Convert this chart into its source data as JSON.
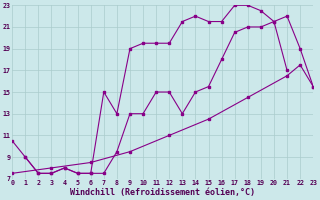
{
  "bg_color": "#cce8ea",
  "grid_color": "#aacccc",
  "line_color": "#880088",
  "xlabel": "Windchill (Refroidissement éolien,°C)",
  "xlabel_fontsize": 6.0,
  "xmin": 0,
  "xmax": 23,
  "ymin": 7,
  "ymax": 23,
  "yticks": [
    7,
    9,
    11,
    13,
    15,
    17,
    19,
    21,
    23
  ],
  "xticks": [
    0,
    1,
    2,
    3,
    4,
    5,
    6,
    7,
    8,
    9,
    10,
    11,
    12,
    13,
    14,
    15,
    16,
    17,
    18,
    19,
    20,
    21,
    22,
    23
  ],
  "series": [
    {
      "x": [
        0,
        1,
        2,
        3,
        4,
        5,
        6,
        7,
        8,
        9,
        10,
        11,
        12,
        13,
        14,
        15,
        16,
        17,
        18,
        19,
        20,
        21
      ],
      "y": [
        10.5,
        9.0,
        7.5,
        7.5,
        8.0,
        7.5,
        7.5,
        15.0,
        13.0,
        19.0,
        19.5,
        19.5,
        19.5,
        21.5,
        22.0,
        21.5,
        21.5,
        23.0,
        23.0,
        22.5,
        21.5,
        17.0
      ]
    },
    {
      "x": [
        1,
        2,
        3,
        4,
        5,
        6,
        7,
        8,
        9,
        10,
        11,
        12,
        13,
        14,
        15,
        16,
        17,
        18,
        19,
        20,
        21,
        22,
        23
      ],
      "y": [
        9.0,
        7.5,
        7.5,
        8.0,
        7.5,
        7.5,
        7.5,
        9.5,
        13.0,
        13.0,
        15.0,
        15.0,
        13.0,
        15.0,
        15.5,
        18.0,
        20.5,
        21.0,
        21.0,
        21.5,
        22.0,
        19.0,
        15.5
      ]
    },
    {
      "x": [
        0,
        3,
        6,
        9,
        12,
        15,
        18,
        21,
        22,
        23
      ],
      "y": [
        7.5,
        8.0,
        8.5,
        9.5,
        11.0,
        12.5,
        14.5,
        16.5,
        17.5,
        15.5
      ]
    }
  ]
}
